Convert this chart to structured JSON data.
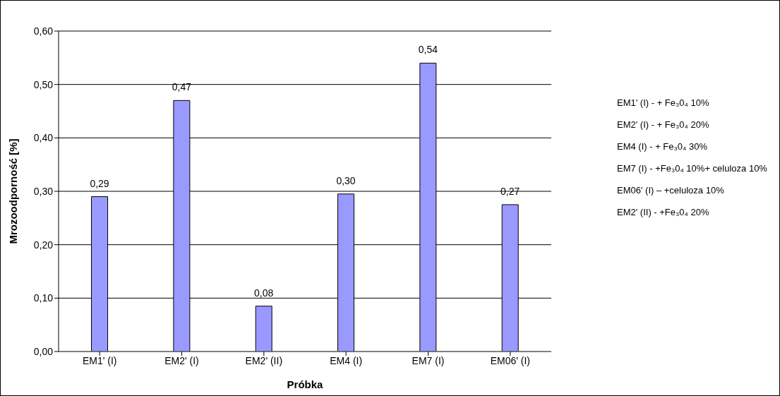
{
  "chart_data": {
    "type": "bar",
    "xlabel": "Próbka",
    "ylabel": "Mrozoodporność [%]",
    "categories": [
      "EM1' (I)",
      "EM2' (I)",
      "EM2' (II)",
      "EM4 (I)",
      "EM7 (I)",
      "EM06' (I)"
    ],
    "values": [
      0.29,
      0.47,
      0.085,
      0.295,
      0.54,
      0.275
    ],
    "value_labels": [
      "0,29",
      "0,47",
      "0,08",
      "0,30",
      "0,54",
      "0,27"
    ],
    "color": "#9999ff",
    "ylim": [
      0,
      0.6
    ],
    "yticks": [
      {
        "value": 0,
        "label": "0,00"
      },
      {
        "value": 0.1,
        "label": "0,10"
      },
      {
        "value": 0.2,
        "label": "0,20"
      },
      {
        "value": 0.3,
        "label": "0,30"
      },
      {
        "value": 0.4,
        "label": "0,40"
      },
      {
        "value": 0.5,
        "label": "0,50"
      },
      {
        "value": 0.6,
        "label": "0,60"
      }
    ],
    "grid": "y",
    "legend": false,
    "annotations": [
      "EM1' (I) - + Fe₃0₄ 10%",
      "EM2' (I) - + Fe₃0₄ 20%",
      "EM4 (I) - + Fe₃0₄ 30%",
      "EM7 (I) - +Fe₃0₄ 10%+ celuloza 10%",
      "EM06' (I) – +celuloza 10%",
      "EM2' (II) - +Fe₃0₄ 20%"
    ]
  }
}
